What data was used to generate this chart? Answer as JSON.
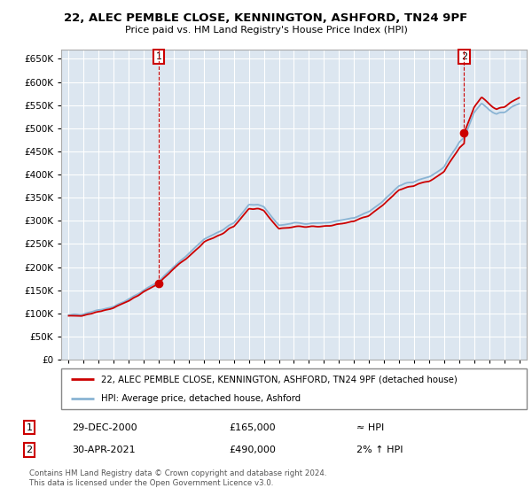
{
  "title": "22, ALEC PEMBLE CLOSE, KENNINGTON, ASHFORD, TN24 9PF",
  "subtitle": "Price paid vs. HM Land Registry's House Price Index (HPI)",
  "legend_line1": "22, ALEC PEMBLE CLOSE, KENNINGTON, ASHFORD, TN24 9PF (detached house)",
  "legend_line2": "HPI: Average price, detached house, Ashford",
  "annotation1_date": "29-DEC-2000",
  "annotation1_price": "£165,000",
  "annotation1_hpi": "≈ HPI",
  "annotation2_date": "30-APR-2021",
  "annotation2_price": "£490,000",
  "annotation2_hpi": "2% ↑ HPI",
  "footer": "Contains HM Land Registry data © Crown copyright and database right 2024.\nThis data is licensed under the Open Government Licence v3.0.",
  "ylim": [
    0,
    670000
  ],
  "yticks": [
    0,
    50000,
    100000,
    150000,
    200000,
    250000,
    300000,
    350000,
    400000,
    450000,
    500000,
    550000,
    600000,
    650000
  ],
  "hpi_color": "#8ab4d4",
  "price_color": "#cc0000",
  "plot_bg_color": "#dce6f0",
  "background_color": "#ffffff",
  "grid_color": "#ffffff",
  "annotation_box_color": "#cc0000",
  "sale1_year": 2001.0,
  "sale1_price": 165000,
  "sale2_year": 2021.33,
  "sale2_price": 490000,
  "xlim_left": 1994.5,
  "xlim_right": 2025.5
}
